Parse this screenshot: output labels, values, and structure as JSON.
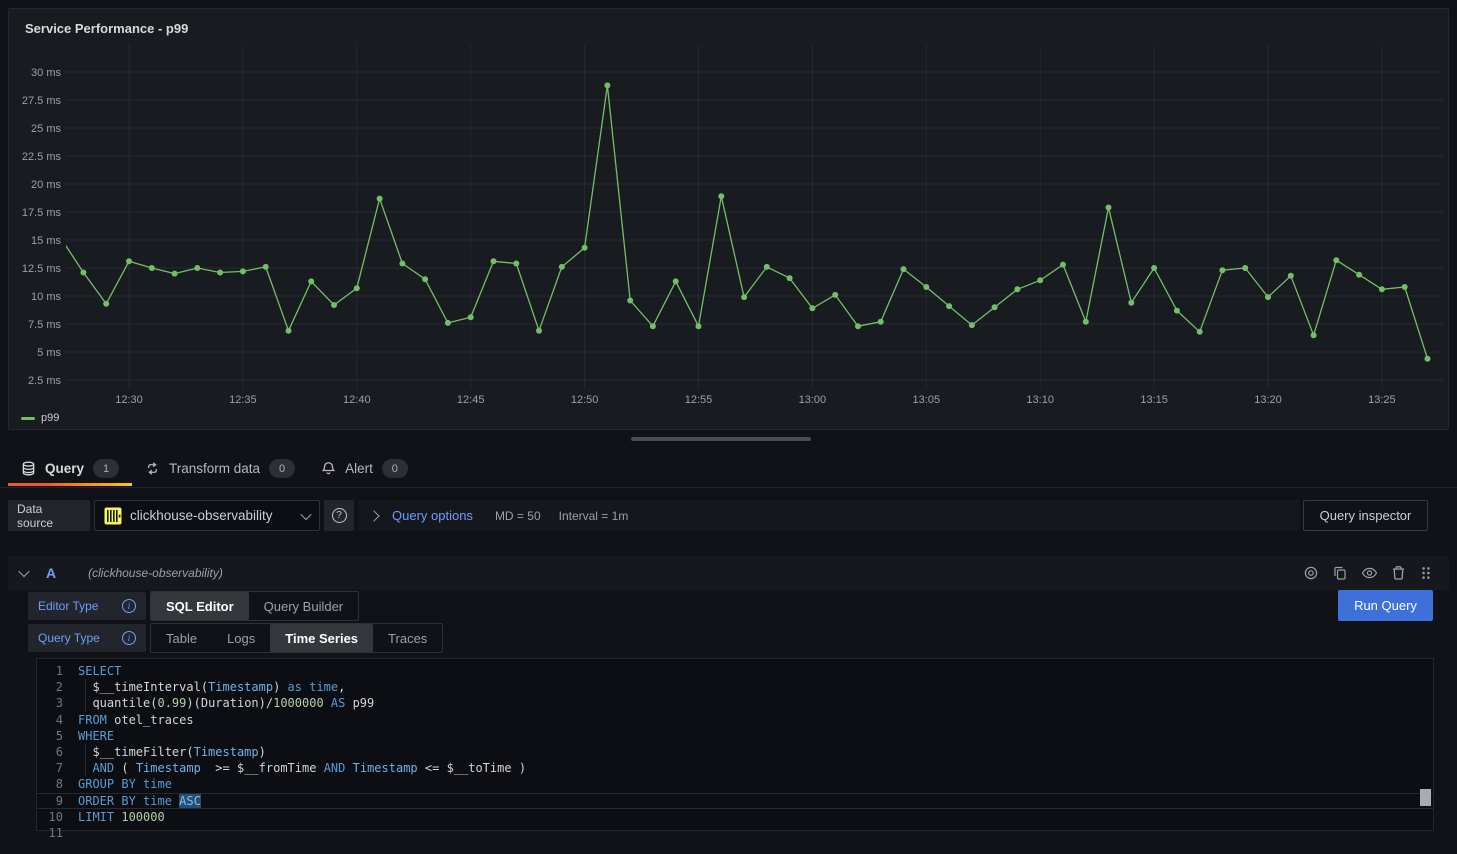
{
  "panel": {
    "title": "Service Performance - p99",
    "legend": "p99"
  },
  "chart_data": {
    "type": "line",
    "title": "Service Performance - p99",
    "y_unit": "ms",
    "grid": true,
    "legend_position": "bottom-left",
    "x": [
      "12:27",
      "12:28",
      "12:29",
      "12:30",
      "12:31",
      "12:32",
      "12:33",
      "12:34",
      "12:35",
      "12:36",
      "12:37",
      "12:38",
      "12:39",
      "12:40",
      "12:41",
      "12:42",
      "12:43",
      "12:44",
      "12:45",
      "12:46",
      "12:47",
      "12:48",
      "12:49",
      "12:50",
      "12:51",
      "12:52",
      "12:53",
      "12:54",
      "12:55",
      "12:56",
      "12:57",
      "12:58",
      "12:59",
      "13:00",
      "13:01",
      "13:02",
      "13:03",
      "13:04",
      "13:05",
      "13:06",
      "13:07",
      "13:08",
      "13:09",
      "13:10",
      "13:11",
      "13:12",
      "13:13",
      "13:14",
      "13:15",
      "13:16",
      "13:17",
      "13:18",
      "13:19",
      "13:20",
      "13:21",
      "13:22",
      "13:23",
      "13:24",
      "13:25",
      "13:26",
      "13:27"
    ],
    "series": [
      {
        "name": "p99",
        "color": "#73bf69",
        "values": [
          15.2,
          12.1,
          9.3,
          13.1,
          12.5,
          12.0,
          12.5,
          12.1,
          12.2,
          12.6,
          6.9,
          11.3,
          9.2,
          10.7,
          18.7,
          12.9,
          11.5,
          7.6,
          8.1,
          13.1,
          12.9,
          6.9,
          12.6,
          14.3,
          28.8,
          9.6,
          7.3,
          11.3,
          7.3,
          18.9,
          9.9,
          12.6,
          11.6,
          8.9,
          10.1,
          7.3,
          7.7,
          12.4,
          10.8,
          9.1,
          7.4,
          9.0,
          10.6,
          11.4,
          12.8,
          7.7,
          17.9,
          9.4,
          12.5,
          8.7,
          6.8,
          12.3,
          12.5,
          9.9,
          11.8,
          6.5,
          13.2,
          11.9,
          10.6,
          10.8,
          4.4
        ]
      }
    ],
    "x_ticks": [
      "12:30",
      "12:35",
      "12:40",
      "12:45",
      "12:50",
      "12:55",
      "13:00",
      "13:05",
      "13:10",
      "13:15",
      "13:20",
      "13:25"
    ],
    "y_ticks": [
      {
        "value": 30,
        "label": "30 ms"
      },
      {
        "value": 27.5,
        "label": "27.5 ms"
      },
      {
        "value": 25,
        "label": "25 ms"
      },
      {
        "value": 22.5,
        "label": "22.5 ms"
      },
      {
        "value": 20,
        "label": "20 ms"
      },
      {
        "value": 17.5,
        "label": "17.5 ms"
      },
      {
        "value": 15,
        "label": "15 ms"
      },
      {
        "value": 12.5,
        "label": "12.5 ms"
      },
      {
        "value": 10,
        "label": "10 ms"
      },
      {
        "value": 7.5,
        "label": "7.5 ms"
      },
      {
        "value": 5,
        "label": "5 ms"
      },
      {
        "value": 2.5,
        "label": "2.5 ms"
      }
    ],
    "ylim": [
      1.7,
      32.4
    ]
  },
  "tabs": [
    {
      "label": "Query",
      "count": "1",
      "icon": "database-icon",
      "active": true
    },
    {
      "label": "Transform data",
      "count": "0",
      "icon": "transform-icon",
      "active": false
    },
    {
      "label": "Alert",
      "count": "0",
      "icon": "bell-icon",
      "active": false
    }
  ],
  "datasource_row": {
    "label": "Data source",
    "selected": "clickhouse-observability",
    "query_options_label": "Query options",
    "md": "MD = 50",
    "interval": "Interval = 1m",
    "inspector_button": "Query inspector"
  },
  "query_row": {
    "ref_id": "A",
    "datasource_hint": "(clickhouse-observability)"
  },
  "editor": {
    "editor_type_label": "Editor Type",
    "editor_type_options": [
      "SQL Editor",
      "Query Builder"
    ],
    "editor_type_active": "SQL Editor",
    "query_type_label": "Query Type",
    "query_type_options": [
      "Table",
      "Logs",
      "Time Series",
      "Traces"
    ],
    "query_type_active": "Time Series",
    "run_button": "Run Query"
  },
  "icons": {
    "help_glyph": "?",
    "info_glyph": "i"
  },
  "colors": {
    "line_green": "#73bf69",
    "link_blue": "#6e9fff",
    "primary_button_blue": "#3d71d9",
    "tab_accent_start": "#f05a28",
    "tab_accent_end": "#fbca0a",
    "clickhouse_yellow": "#f6f75a",
    "selection_blue": "#264f78"
  },
  "sql": {
    "current_line": 9,
    "lines": [
      {
        "n": "1",
        "tokens": [
          [
            "SELECT",
            "k"
          ]
        ]
      },
      {
        "n": "2",
        "guide": true,
        "tokens": [
          [
            "  $__timeInterval(",
            "d"
          ],
          [
            "Timestamp",
            "v"
          ],
          [
            ") ",
            "d"
          ],
          [
            "as",
            "k"
          ],
          [
            " ",
            "d"
          ],
          [
            "time",
            "k"
          ],
          [
            ",",
            "d"
          ]
        ]
      },
      {
        "n": "3",
        "guide": true,
        "tokens": [
          [
            "  quantile(",
            "d"
          ],
          [
            "0.99",
            "n"
          ],
          [
            ")(Duration)/",
            "d"
          ],
          [
            "1000000",
            "n"
          ],
          [
            " ",
            "d"
          ],
          [
            "AS",
            "k"
          ],
          [
            " p99",
            "d"
          ]
        ]
      },
      {
        "n": "4",
        "tokens": [
          [
            "FROM",
            "k"
          ],
          [
            " otel_traces",
            "d"
          ]
        ]
      },
      {
        "n": "5",
        "tokens": [
          [
            "WHERE",
            "k"
          ]
        ]
      },
      {
        "n": "6",
        "guide": true,
        "tokens": [
          [
            "  $__timeFilter(",
            "d"
          ],
          [
            "Timestamp",
            "v"
          ],
          [
            ")",
            "d"
          ]
        ]
      },
      {
        "n": "7",
        "guide": true,
        "tokens": [
          [
            "  ",
            "d"
          ],
          [
            "AND",
            "k"
          ],
          [
            " ( ",
            "d"
          ],
          [
            "Timestamp",
            "v"
          ],
          [
            "  >= ",
            "d"
          ],
          [
            "$__fromTime",
            "d"
          ],
          [
            " ",
            "d"
          ],
          [
            "AND",
            "k"
          ],
          [
            " ",
            "d"
          ],
          [
            "Timestamp",
            "v"
          ],
          [
            " <= ",
            "d"
          ],
          [
            "$__toTime",
            "d"
          ],
          [
            " )",
            "d"
          ]
        ]
      },
      {
        "n": "8",
        "tokens": [
          [
            "GROUP BY",
            "k"
          ],
          [
            " ",
            "d"
          ],
          [
            "time",
            "k"
          ]
        ]
      },
      {
        "n": "9",
        "current": true,
        "tokens": [
          [
            "ORDER BY",
            "k"
          ],
          [
            " ",
            "d"
          ],
          [
            "time",
            "k"
          ],
          [
            " ",
            "d"
          ],
          [
            "ASC",
            "ks"
          ]
        ]
      },
      {
        "n": "10",
        "tokens": [
          [
            "LIMIT",
            "k"
          ],
          [
            " ",
            "d"
          ],
          [
            "100000",
            "n"
          ]
        ]
      },
      {
        "n": "11",
        "tokens": []
      }
    ]
  }
}
